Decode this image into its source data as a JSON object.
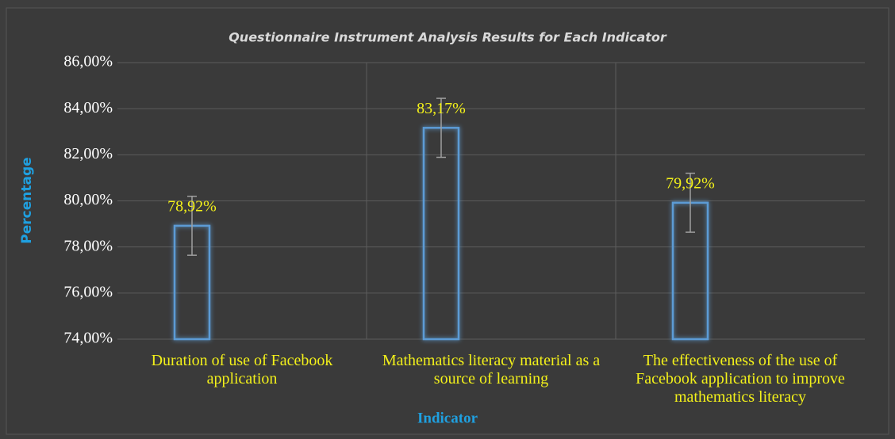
{
  "chart_data": {
    "type": "bar",
    "title": "Questionnaire Instrument Analysis Results for Each Indicator",
    "x_label": "Indicator",
    "y_label": "Percentage",
    "categories": [
      "Duration of use of Facebook application",
      "Mathematics literacy material as a source of learning",
      "The effectiveness of the use of Facebook application to improve mathematics literacy"
    ],
    "values": [
      78.92,
      83.17,
      79.92
    ],
    "value_labels": [
      "78,92%",
      "83,17%",
      "79,92%"
    ],
    "errors": [
      1.28,
      1.28,
      1.28
    ],
    "color": "#5b9bd5",
    "ylim": [
      74,
      86
    ],
    "yticks": [
      {
        "value": 74,
        "label": "74,00%"
      },
      {
        "value": 76,
        "label": "76,00%"
      },
      {
        "value": 78,
        "label": "78,00%"
      },
      {
        "value": 80,
        "label": "80,00%"
      },
      {
        "value": 82,
        "label": "82,00%"
      },
      {
        "value": 84,
        "label": "84,00%"
      },
      {
        "value": 86,
        "label": "86,00%"
      }
    ],
    "grid": true
  }
}
